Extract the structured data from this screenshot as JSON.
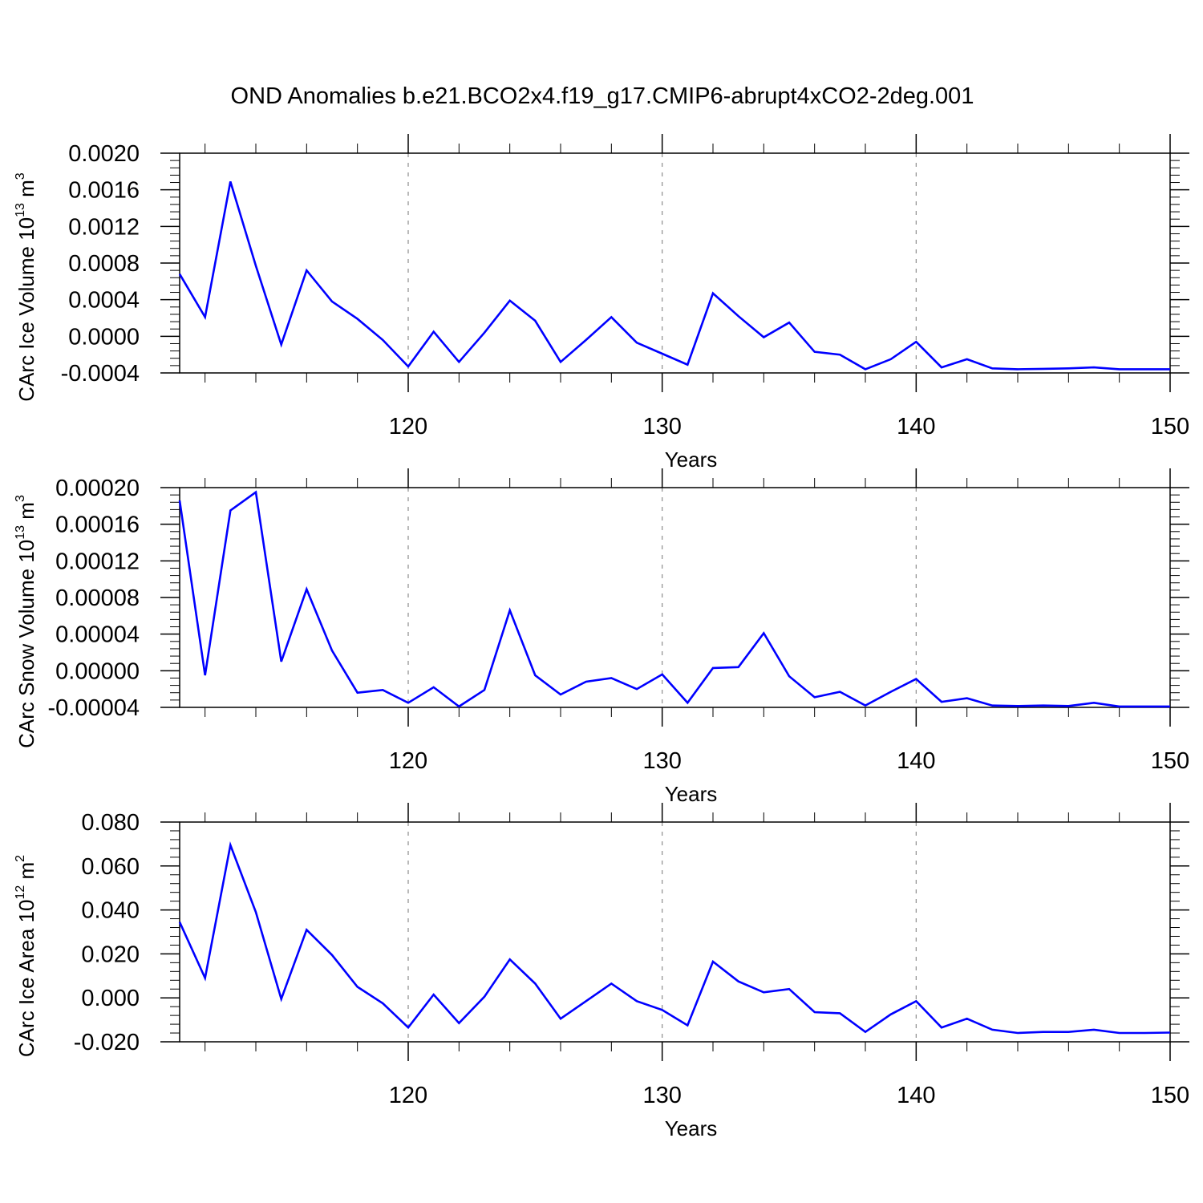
{
  "title": "OND Anomalies b.e21.BCO2x4.f19_g17.CMIP6-abrupt4xCO2-2deg.001",
  "colors": {
    "line": "#0000ff",
    "axis": "#000000",
    "grid": "#8c8c8c"
  },
  "chart_data": [
    {
      "type": "line",
      "title": "",
      "xlabel": "Years",
      "ylabel": {
        "text": "CArc Ice Volume 10",
        "sup1": "13",
        "mid": " m",
        "sup2": "3"
      },
      "xlim": [
        111,
        150
      ],
      "ylim": [
        -0.0004,
        0.002
      ],
      "xticks": [
        120,
        130,
        140,
        150
      ],
      "xtick_labels": [
        "120",
        "130",
        "140",
        "150"
      ],
      "yticks": [
        -0.0004,
        0.0,
        0.0004,
        0.0008,
        0.0012,
        0.0016,
        0.002
      ],
      "ytick_labels": [
        "-0.0004",
        "0.0000",
        "0.0004",
        "0.0008",
        "0.0012",
        "0.0016",
        "0.0020"
      ],
      "grid": "dashed vertical at major x ticks",
      "x": [
        111,
        112,
        113,
        114,
        115,
        116,
        117,
        118,
        119,
        120,
        121,
        122,
        123,
        124,
        125,
        126,
        127,
        128,
        129,
        130,
        131,
        132,
        133,
        134,
        135,
        136,
        137,
        138,
        139,
        140,
        141,
        142,
        143,
        144,
        145,
        146,
        147,
        148,
        149,
        150
      ],
      "series": [
        {
          "values": [
            0.00068,
            0.00021,
            0.00169,
            0.00077,
            -9e-05,
            0.00072,
            0.00038,
            0.00019,
            -4e-05,
            -0.00033,
            5e-05,
            -0.00028,
            4e-05,
            0.00039,
            0.00017,
            -0.00028,
            -4e-05,
            0.00021,
            -7e-05,
            -0.00019,
            -0.00031,
            0.00047,
            0.00022,
            -1e-05,
            0.00015,
            -0.00017,
            -0.0002,
            -0.00036,
            -0.00025,
            -6e-05,
            -0.00034,
            -0.00025,
            -0.00035,
            -0.00036,
            -0.000355,
            -0.00035,
            -0.00034,
            -0.00036,
            -0.00036,
            -0.00036
          ]
        }
      ]
    },
    {
      "type": "line",
      "title": "",
      "xlabel": "Years",
      "ylabel": {
        "text": "CArc Snow Volume 10",
        "sup1": "13",
        "mid": " m",
        "sup2": "3"
      },
      "xlim": [
        111,
        150
      ],
      "ylim": [
        -4e-05,
        0.0002
      ],
      "xticks": [
        120,
        130,
        140,
        150
      ],
      "xtick_labels": [
        "120",
        "130",
        "140",
        "150"
      ],
      "yticks": [
        -4e-05,
        0.0,
        4e-05,
        8e-05,
        0.00012,
        0.00016,
        0.0002
      ],
      "ytick_labels": [
        "-0.00004",
        "0.00000",
        "0.00004",
        "0.00008",
        "0.00012",
        "0.00016",
        "0.00020"
      ],
      "grid": "dashed vertical at major x ticks",
      "x": [
        111,
        112,
        113,
        114,
        115,
        116,
        117,
        118,
        119,
        120,
        121,
        122,
        123,
        124,
        125,
        126,
        127,
        128,
        129,
        130,
        131,
        132,
        133,
        134,
        135,
        136,
        137,
        138,
        139,
        140,
        141,
        142,
        143,
        144,
        145,
        146,
        147,
        148,
        149,
        150
      ],
      "series": [
        {
          "values": [
            0.000186,
            -5e-06,
            0.000175,
            0.000195,
            1e-05,
            8.9e-05,
            2.2e-05,
            -2.4e-05,
            -2.1e-05,
            -3.5e-05,
            -1.8e-05,
            -3.9e-05,
            -2.1e-05,
            6.6e-05,
            -5e-06,
            -2.6e-05,
            -1.2e-05,
            -8e-06,
            -2e-05,
            -4e-06,
            -3.5e-05,
            3e-06,
            4e-06,
            4.1e-05,
            -6e-06,
            -2.9e-05,
            -2.3e-05,
            -3.8e-05,
            -2.3e-05,
            -9e-06,
            -3.4e-05,
            -3e-05,
            -3.8e-05,
            -3.85e-05,
            -3.8e-05,
            -3.85e-05,
            -3.5e-05,
            -3.9e-05,
            -3.9e-05,
            -3.9e-05
          ]
        }
      ]
    },
    {
      "type": "line",
      "title": "",
      "xlabel": "Years",
      "ylabel": {
        "text": "CArc Ice Area 10",
        "sup1": "12",
        "mid": " m",
        "sup2": "2"
      },
      "xlim": [
        111,
        150
      ],
      "ylim": [
        -0.02,
        0.08
      ],
      "xticks": [
        120,
        130,
        140,
        150
      ],
      "xtick_labels": [
        "120",
        "130",
        "140",
        "150"
      ],
      "yticks": [
        -0.02,
        0.0,
        0.02,
        0.04,
        0.06,
        0.08
      ],
      "ytick_labels": [
        "-0.020",
        "0.000",
        "0.020",
        "0.040",
        "0.060",
        "0.080"
      ],
      "grid": "dashed vertical at major x ticks",
      "x": [
        111,
        112,
        113,
        114,
        115,
        116,
        117,
        118,
        119,
        120,
        121,
        122,
        123,
        124,
        125,
        126,
        127,
        128,
        129,
        130,
        131,
        132,
        133,
        134,
        135,
        136,
        137,
        138,
        139,
        140,
        141,
        142,
        143,
        144,
        145,
        146,
        147,
        148,
        149,
        150
      ],
      "series": [
        {
          "values": [
            0.0345,
            0.009,
            0.0695,
            0.039,
            -0.0005,
            0.031,
            0.0195,
            0.005,
            -0.0025,
            -0.0135,
            0.0015,
            -0.0115,
            0.0005,
            0.0175,
            0.0065,
            -0.0095,
            -0.0015,
            0.0065,
            -0.0015,
            -0.0055,
            -0.0125,
            0.0165,
            0.0075,
            0.0025,
            0.004,
            -0.0065,
            -0.007,
            -0.0155,
            -0.0075,
            -0.0015,
            -0.0135,
            -0.0095,
            -0.0145,
            -0.016,
            -0.0155,
            -0.0155,
            -0.0145,
            -0.016,
            -0.016,
            -0.0158
          ]
        }
      ]
    }
  ]
}
